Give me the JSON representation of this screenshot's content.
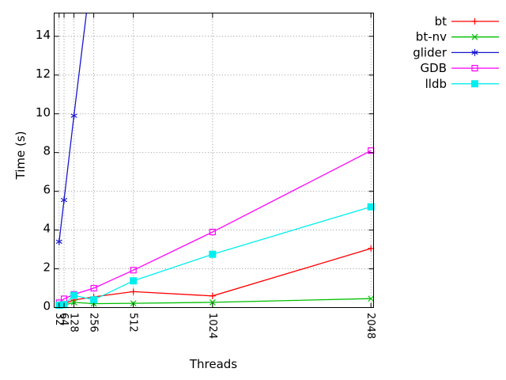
{
  "chart_data": {
    "type": "line",
    "title": "",
    "xlabel": "Threads",
    "ylabel": "Time (s)",
    "x_ticks": [
      32,
      64,
      128,
      256,
      512,
      1024,
      2048
    ],
    "y_ticks": [
      0,
      2,
      4,
      6,
      8,
      10,
      12,
      14
    ],
    "xlim": [
      0,
      2065
    ],
    "ylim": [
      0,
      15.2
    ],
    "grid": true,
    "legend_position": "outside-top-right",
    "x": [
      32,
      64,
      128,
      256,
      512,
      1024,
      2048
    ],
    "series": [
      {
        "name": "bt",
        "color": "#ff0000",
        "marker": "plus",
        "values": [
          0.15,
          0.2,
          0.39,
          0.55,
          0.82,
          0.6,
          3.05
        ]
      },
      {
        "name": "bt-nv",
        "color": "#00c000",
        "marker": "cross",
        "values": [
          0.1,
          0.12,
          0.27,
          0.2,
          0.22,
          0.27,
          0.46
        ]
      },
      {
        "name": "glider",
        "color": "#1717cd",
        "marker": "asterisk",
        "values": [
          3.4,
          5.55,
          9.9,
          18.3,
          null,
          null,
          null
        ]
      },
      {
        "name": "GDB",
        "color": "#ff00ff",
        "marker": "open-square",
        "values": [
          0.25,
          0.45,
          0.68,
          1.0,
          1.93,
          3.9,
          8.1
        ]
      },
      {
        "name": "lldb",
        "color": "#00eeee",
        "marker": "filled-square",
        "values": [
          0.12,
          0.15,
          0.63,
          0.4,
          1.38,
          2.75,
          5.2
        ]
      }
    ],
    "colors": {
      "background": "#ffffff",
      "frame": "#000000",
      "gridline": "#8a8a8a"
    }
  }
}
